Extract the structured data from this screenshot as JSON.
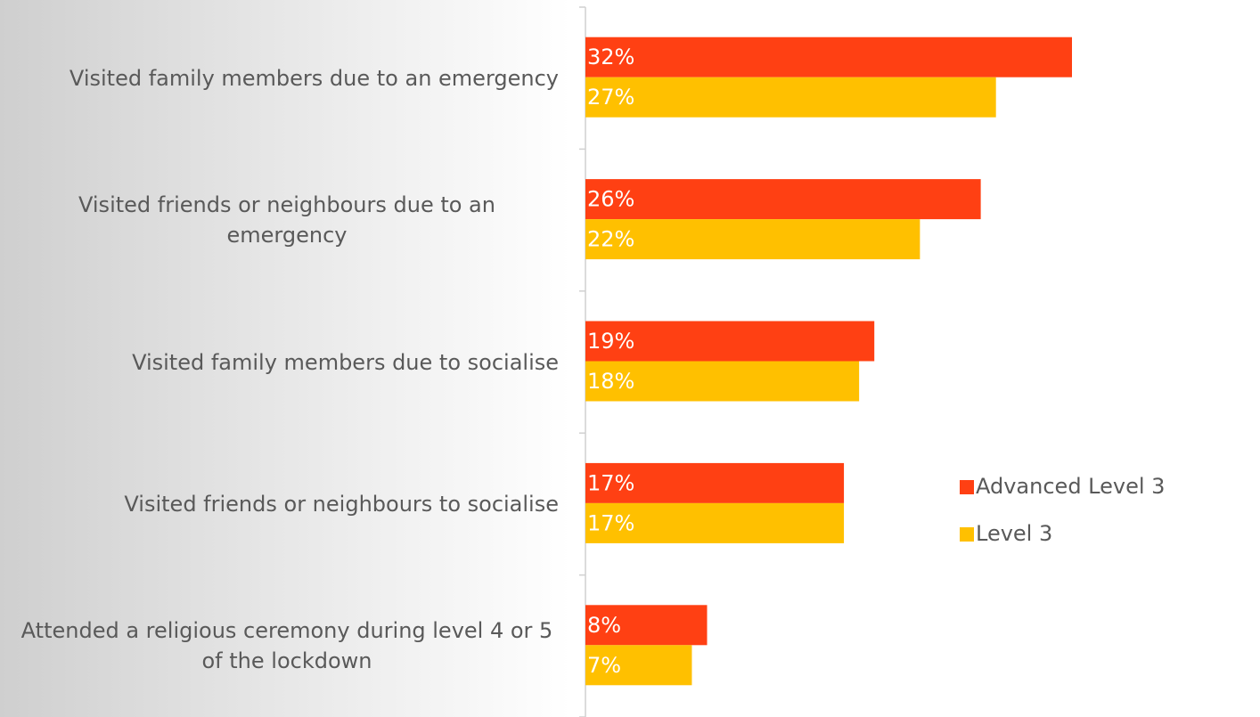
{
  "chart_data": {
    "type": "hbar",
    "categories": [
      "Visited family members due to an emergency",
      "Visited friends or neighbours due to an emergency",
      "Visited family members due to socialise",
      "Visited friends or neighbours to socialise",
      "Attended a religious ceremony during level 4 or 5 of the lockdown"
    ],
    "series": [
      {
        "name": "Advanced Level 3",
        "color": "#ff4013",
        "values": [
          32,
          26,
          19,
          17,
          8
        ],
        "value_labels": [
          "32%",
          "26%",
          "19%",
          "17%",
          "8%"
        ]
      },
      {
        "name": "Level 3",
        "color": "#ffc000",
        "values": [
          27,
          22,
          18,
          17,
          7
        ],
        "value_labels": [
          "27%",
          "22%",
          "18%",
          "17%",
          "7%"
        ]
      }
    ],
    "legend": "right"
  }
}
